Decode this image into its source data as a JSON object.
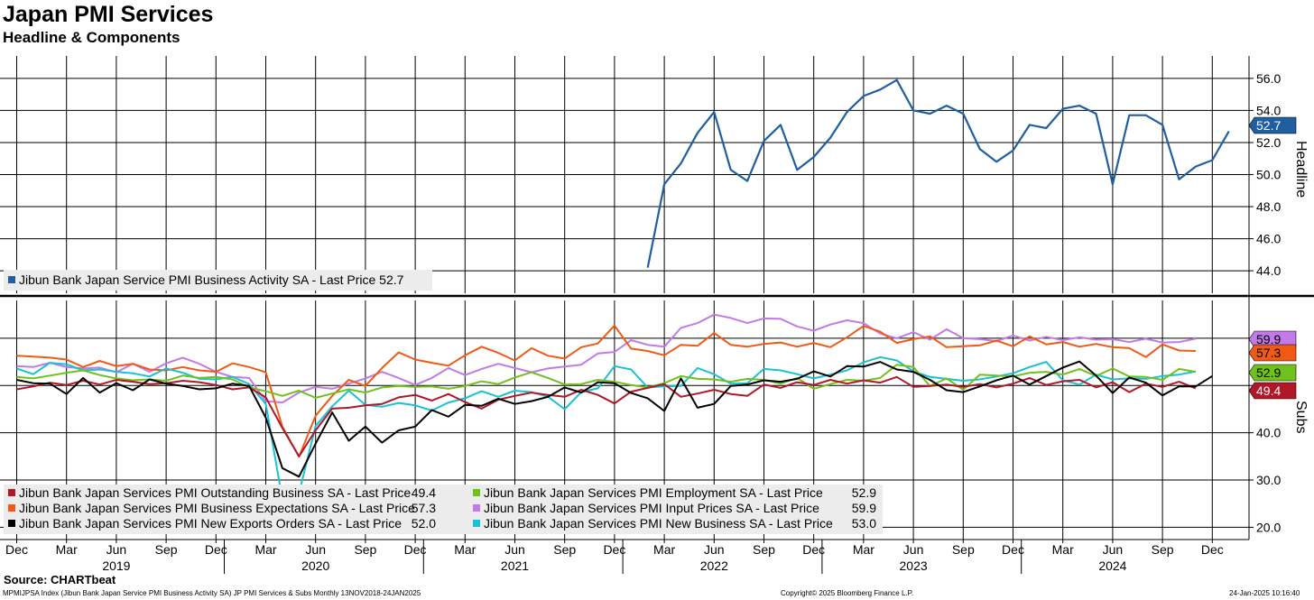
{
  "header": {
    "title": "Japan PMI Services",
    "subtitle": "Headline & Components"
  },
  "footer": {
    "source": "Source: CHARTbeat",
    "index_text": "MPMIJPSA Index (Jibun Bank Japan Service PMI Business Activity SA) JP PMI Services & Subs  Monthly 13NOV2018-24JAN2025",
    "copyright": "Copyright© 2025 Bloomberg Finance L.P.",
    "date": "24-Jan-2025 10:16:40"
  },
  "chart_data": [
    {
      "type": "line",
      "panel": "top",
      "title": "Japan PMI Services",
      "ylabel": "Headline",
      "ylim": [
        42.6,
        57.4
      ],
      "yticks": [
        44.0,
        46.0,
        48.0,
        50.0,
        52.0,
        54.0,
        56.0
      ],
      "grid": true,
      "legend_position": "bottom-left",
      "x_start": "2018-12",
      "series": [
        {
          "name": "Jibun Bank Japan Service PMI Business Activity SA",
          "legend": "Jibun Bank Japan Service PMI Business Activity SA - Last Price 52.7",
          "color": "#1f5f9f",
          "last_value": "52.7",
          "start_index": 38,
          "values": [
            44.2,
            49.4,
            50.7,
            52.6,
            53.9,
            50.3,
            49.6,
            52.1,
            53.1,
            50.3,
            51.1,
            52.3,
            53.9,
            54.9,
            55.3,
            55.9,
            54.0,
            53.8,
            54.3,
            53.8,
            51.6,
            50.8,
            51.5,
            53.1,
            52.9,
            54.1,
            54.3,
            53.8,
            49.4,
            53.7,
            53.7,
            53.1,
            49.7,
            50.5,
            50.9,
            52.7
          ]
        }
      ],
      "x_ticks": [
        "Dec",
        "Mar",
        "Jun",
        "Sep",
        "Dec",
        "Mar",
        "Jun",
        "Sep",
        "Dec",
        "Mar",
        "Jun",
        "Sep",
        "Dec",
        "Mar",
        "Jun",
        "Sep",
        "Dec",
        "Mar",
        "Jun",
        "Sep",
        "Dec",
        "Mar",
        "Jun",
        "Sep",
        "Dec"
      ],
      "x_years": [
        "2019",
        "2020",
        "2021",
        "2022",
        "2023",
        "2024"
      ]
    },
    {
      "type": "line",
      "panel": "bottom",
      "ylabel": "Subs",
      "ylim": [
        17.4,
        68.0
      ],
      "yticks": [
        20.0,
        30.0,
        40.0,
        50.0,
        60.0
      ],
      "grid": true,
      "legend_position": "bottom-left",
      "series": [
        {
          "name": "Jibun Bank Japan Services PMI Outstanding Business SA",
          "legend_name": "Jibun Bank Japan Services PMI Outstanding Business SA - Last Price",
          "last_value": "49.4",
          "color": "#b0182a",
          "values": [
            49.2,
            49.8,
            50.6,
            50.1,
            51.0,
            50.2,
            51.2,
            50.8,
            50.3,
            50.5,
            51.0,
            50.7,
            50.1,
            49.2,
            49.6,
            47.5,
            41.0,
            35.0,
            40.5,
            45.1,
            45.3,
            45.8,
            46.1,
            47.5,
            48.0,
            46.8,
            48.2,
            46.5,
            45.1,
            47.0,
            47.8,
            48.5,
            48.0,
            47.6,
            49.1,
            48.0,
            46.2,
            48.7,
            49.5,
            50.3,
            47.6,
            48.3,
            49.1,
            48.2,
            47.8,
            50.2,
            49.5,
            50.7,
            50.1,
            51.2,
            50.4,
            51.1,
            50.6,
            51.8,
            49.7,
            49.9,
            50.2,
            49.7,
            50.3,
            49.6,
            50.4,
            51.6,
            50.1,
            50.9,
            51.2,
            49.6,
            50.7,
            48.6,
            50.4,
            49.7,
            50.8,
            49.4
          ]
        },
        {
          "name": "Jibun Bank Japan Services PMI Business Expectations SA",
          "legend_name": "Jibun Bank Japan Services PMI Business Expectations SA - Last Price",
          "last_value": "57.3",
          "color": "#f05a14",
          "values": [
            56.3,
            56.1,
            55.9,
            55.5,
            53.9,
            55.2,
            54.1,
            54.6,
            53.4,
            53.2,
            53.9,
            53.2,
            52.9,
            54.7,
            53.9,
            52.8,
            41.3,
            34.9,
            43.6,
            47.8,
            51.2,
            49.9,
            53.7,
            57.0,
            55.5,
            54.8,
            54.2,
            56.4,
            58.2,
            56.9,
            55.3,
            57.9,
            56.3,
            55.7,
            58.1,
            58.9,
            62.7,
            57.8,
            57.3,
            56.4,
            58.6,
            58.4,
            61.1,
            58.6,
            58.2,
            58.8,
            59.1,
            58.2,
            59.0,
            58.1,
            60.2,
            62.6,
            61.4,
            59.0,
            59.8,
            60.4,
            58.1,
            58.3,
            58.5,
            59.5,
            58.3,
            60.4,
            58.7,
            59.2,
            58.2,
            58.8,
            58.1,
            57.9,
            56.0,
            58.7,
            57.4,
            57.3
          ]
        },
        {
          "name": "Jibun Bank Japan Services PMI New Exports Orders SA",
          "legend_name": "Jibun Bank Japan Services PMI New Exports Orders SA - Last Price",
          "last_value": "52.0",
          "color": "#000000",
          "values": [
            51.2,
            50.5,
            50.4,
            48.2,
            51.6,
            48.5,
            50.5,
            49.0,
            51.3,
            50.4,
            49.9,
            49.2,
            49.4,
            50.4,
            49.9,
            43.2,
            32.5,
            30.7,
            37.7,
            44.3,
            38.3,
            41.3,
            37.9,
            40.5,
            41.3,
            44.8,
            43.4,
            45.9,
            45.7,
            47.2,
            46.1,
            46.7,
            47.6,
            49.6,
            48.5,
            50.7,
            50.5,
            48.4,
            47.3,
            44.6,
            51.5,
            45.3,
            46.1,
            49.9,
            50.2,
            51.1,
            50.8,
            51.4,
            53.0,
            51.9,
            54.1,
            54.0,
            55.0,
            53.4,
            52.9,
            51.2,
            49.0,
            48.6,
            49.8,
            51.1,
            52.1,
            50.2,
            52.0,
            53.8,
            55.1,
            52.1,
            48.4,
            51.7,
            50.6,
            47.9,
            49.8,
            49.8,
            52.0
          ]
        },
        {
          "name": "Jibun Bank Japan Services PMI Employment SA",
          "legend_name": "Jibun Bank Japan Services PMI Employment SA - Last Price",
          "last_value": "52.9",
          "color": "#6fc21c",
          "values": [
            51.8,
            51.5,
            52.1,
            52.7,
            53.2,
            52.2,
            51.5,
            51.1,
            51.3,
            51.0,
            52.1,
            51.6,
            51.8,
            51.3,
            49.6,
            48.8,
            47.8,
            48.9,
            47.4,
            48.3,
            49.2,
            48.5,
            49.6,
            49.9,
            49.7,
            49.8,
            49.3,
            49.9,
            50.9,
            50.3,
            51.7,
            52.8,
            51.6,
            50.2,
            50.3,
            51.2,
            50.8,
            50.1,
            49.6,
            50.5,
            52.0,
            51.4,
            51.3,
            50.8,
            51.4,
            51.2,
            50.4,
            51.6,
            49.3,
            50.3,
            51.2,
            51.0,
            51.6,
            54.4,
            53.9,
            49.9,
            51.5,
            49.1,
            52.3,
            52.1,
            51.9,
            52.7,
            52.9,
            52.3,
            53.5,
            52.0,
            53.6,
            51.9,
            51.8,
            51.2,
            53.5,
            52.9
          ]
        },
        {
          "name": "Jibun Bank Japan Services PMI Input Prices SA",
          "legend_name": "Jibun Bank Japan Services PMI Input Prices SA - Last Price",
          "last_value": "59.9",
          "color": "#c27ae8",
          "values": [
            54.1,
            53.9,
            54.8,
            53.9,
            53.6,
            53.8,
            52.8,
            54.6,
            52.9,
            54.7,
            55.9,
            54.6,
            52.9,
            51.8,
            51.6,
            46.7,
            46.4,
            48.5,
            49.7,
            49.3,
            50.4,
            51.5,
            52.9,
            51.6,
            50.1,
            51.6,
            53.7,
            52.2,
            53.5,
            54.6,
            53.7,
            52.8,
            53.6,
            54.0,
            54.4,
            56.8,
            57.1,
            59.6,
            58.6,
            58.2,
            62.2,
            63.2,
            65.0,
            64.3,
            63.2,
            64.2,
            64.1,
            62.5,
            61.6,
            62.9,
            63.8,
            63.2,
            61.0,
            60.0,
            61.3,
            59.7,
            61.9,
            60.0,
            59.8,
            59.4,
            60.6,
            59.5,
            60.3,
            59.6,
            60.2,
            59.7,
            59.8,
            59.2,
            59.9,
            59.1,
            59.2,
            59.9
          ]
        },
        {
          "name": "Jibun Bank Japan Services PMI New Business SA",
          "legend_name": "Jibun Bank Japan Services PMI New Business SA - Last Price",
          "last_value": "53.0",
          "color": "#19c2d2",
          "values": [
            53.6,
            52.4,
            54.8,
            54.5,
            53.2,
            53.4,
            52.9,
            52.6,
            51.9,
            53.6,
            52.7,
            51.4,
            51.3,
            51.8,
            50.3,
            46.1,
            25.9,
            27.2,
            41.4,
            45.6,
            48.9,
            45.9,
            45.5,
            46.3,
            45.8,
            44.7,
            46.4,
            47.3,
            48.8,
            47.6,
            48.9,
            48.6,
            47.6,
            45.0,
            48.6,
            49.4,
            54.1,
            53.4,
            49.6,
            49.8,
            49.9,
            53.7,
            52.4,
            50.4,
            50.5,
            53.5,
            53.2,
            52.4,
            51.5,
            52.3,
            53.2,
            54.9,
            56.0,
            55.3,
            53.0,
            51.8,
            51.4,
            51.0,
            51.3,
            51.9,
            52.6,
            53.9,
            55.0,
            51.1,
            50.2,
            52.3,
            51.3,
            51.5,
            51.4,
            52.0,
            52.3,
            53.0
          ]
        }
      ]
    }
  ]
}
